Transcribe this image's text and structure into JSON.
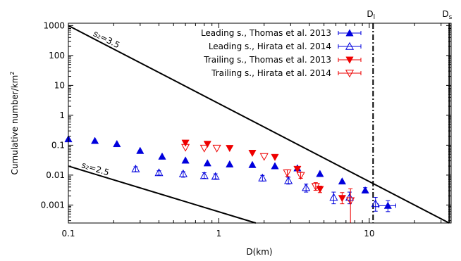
{
  "chart_data": {
    "type": "scatter",
    "xlabel": "D(km)",
    "ylabel": "Cumulative number/km",
    "ylabel_superscript": "2",
    "xscale": "log",
    "yscale": "log",
    "xlim": [
      0.1,
      35
    ],
    "ylim": [
      0.00025,
      1200
    ],
    "x_ticks": [
      {
        "value": 0.1,
        "label": "0.1"
      },
      {
        "value": 1,
        "label": "1"
      },
      {
        "value": 10,
        "label": "10"
      }
    ],
    "y_ticks": [
      {
        "value": 1000,
        "label": "1000"
      },
      {
        "value": 100,
        "label": "100"
      },
      {
        "value": 10,
        "label": "10"
      },
      {
        "value": 1,
        "label": "1"
      },
      {
        "value": 0.1,
        "label": "0.1"
      },
      {
        "value": 0.01,
        "label": "0.01"
      },
      {
        "value": 0.001,
        "label": "0.001"
      }
    ],
    "legend_position": "top-right",
    "series": [
      {
        "name": "Leading s., Thomas et al. 2013",
        "color": "#0000dd",
        "marker": "triangle-up-filled",
        "points": [
          {
            "x": 0.1,
            "y": 0.16
          },
          {
            "x": 0.15,
            "y": 0.14
          },
          {
            "x": 0.21,
            "y": 0.11
          },
          {
            "x": 0.3,
            "y": 0.065
          },
          {
            "x": 0.42,
            "y": 0.042
          },
          {
            "x": 0.6,
            "y": 0.031
          },
          {
            "x": 0.84,
            "y": 0.025
          },
          {
            "x": 1.18,
            "y": 0.023
          },
          {
            "x": 1.67,
            "y": 0.022
          },
          {
            "x": 2.36,
            "y": 0.02
          },
          {
            "x": 3.33,
            "y": 0.017
          },
          {
            "x": 4.7,
            "y": 0.011
          },
          {
            "x": 6.6,
            "y": 0.0062
          },
          {
            "x": 9.4,
            "y": 0.0031,
            "yerr": [
              0.0025,
              0.0038
            ]
          },
          {
            "x": 13.3,
            "y": 0.00095,
            "xerr": [
              11.5,
              15
            ],
            "yerr": [
              0.0006,
              0.0014
            ]
          }
        ]
      },
      {
        "name": "Leading s., Hirata et al. 2014",
        "color": "#0000dd",
        "marker": "triangle-up-open",
        "points": [
          {
            "x": 0.28,
            "y": 0.016,
            "yerr": [
              0.013,
              0.019
            ]
          },
          {
            "x": 0.4,
            "y": 0.012,
            "yerr": [
              0.01,
              0.014
            ]
          },
          {
            "x": 0.58,
            "y": 0.011,
            "yerr": [
              0.0085,
              0.013
            ]
          },
          {
            "x": 0.8,
            "y": 0.0095,
            "yerr": [
              0.0078,
              0.012
            ]
          },
          {
            "x": 0.95,
            "y": 0.009,
            "yerr": [
              0.0075,
              0.011
            ]
          },
          {
            "x": 1.95,
            "y": 0.008,
            "yerr": [
              0.0063,
              0.0098
            ]
          },
          {
            "x": 2.9,
            "y": 0.0065,
            "yerr": [
              0.005,
              0.0085
            ]
          },
          {
            "x": 3.8,
            "y": 0.0038,
            "yerr": [
              0.0027,
              0.005
            ]
          },
          {
            "x": 5.8,
            "y": 0.0018,
            "yerr": [
              0.0011,
              0.0027
            ]
          },
          {
            "x": 7.4,
            "y": 0.0018,
            "yerr": [
              0.0011,
              0.0027
            ]
          },
          {
            "x": 11.0,
            "y": 0.0011,
            "yerr": [
              0.00062,
              0.0018
            ]
          }
        ]
      },
      {
        "name": "Trailing s., Thomas et al. 2013",
        "color": "#ee0000",
        "marker": "triangle-down-filled",
        "points": [
          {
            "x": 0.6,
            "y": 0.12
          },
          {
            "x": 0.84,
            "y": 0.11
          },
          {
            "x": 1.18,
            "y": 0.08
          },
          {
            "x": 1.67,
            "y": 0.055
          },
          {
            "x": 2.36,
            "y": 0.04
          },
          {
            "x": 3.33,
            "y": 0.016
          },
          {
            "x": 4.7,
            "y": 0.0034,
            "yerr": [
              0.0026,
              0.0043
            ]
          },
          {
            "x": 6.6,
            "y": 0.0017,
            "yerr": [
              0.0011,
              0.0026
            ]
          }
        ]
      },
      {
        "name": "Trailing s., Hirata et al. 2014",
        "color": "#ee0000",
        "marker": "triangle-down-open",
        "points": [
          {
            "x": 0.6,
            "y": 0.085
          },
          {
            "x": 0.8,
            "y": 0.08
          },
          {
            "x": 0.97,
            "y": 0.08
          },
          {
            "x": 2.0,
            "y": 0.042
          },
          {
            "x": 2.85,
            "y": 0.012,
            "yerr": [
              0.009,
              0.015
            ]
          },
          {
            "x": 3.5,
            "y": 0.0098,
            "yerr": [
              0.0078,
              0.0125
            ]
          },
          {
            "x": 4.4,
            "y": 0.0042,
            "yerr": [
              0.0031,
              0.0056
            ]
          },
          {
            "x": 7.5,
            "y": 0.0014,
            "yerr": [
              0.0002,
              0.0035
            ]
          }
        ]
      }
    ],
    "reference_lines": [
      {
        "label": "s₂=3.5",
        "points": [
          {
            "x": 0.1,
            "y": 1000
          },
          {
            "x": 34,
            "y": 0.00025
          }
        ]
      },
      {
        "label": "s₂=2.5",
        "points": [
          {
            "x": 0.1,
            "y": 0.02
          },
          {
            "x": 1.76,
            "y": 0.00025
          }
        ]
      }
    ],
    "vertical_lines": [
      {
        "label": "D",
        "subscript": "l",
        "x": 10.6,
        "style": "dash-dot"
      },
      {
        "label": "D",
        "subscript": "s",
        "x": 34,
        "style": "solid"
      }
    ]
  }
}
